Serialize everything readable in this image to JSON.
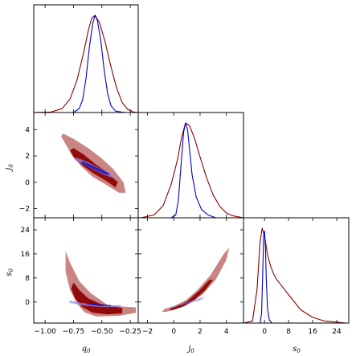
{
  "chart_data": {
    "type": "corner",
    "parameters": [
      "q0",
      "j0",
      "s0"
    ],
    "axis_labels": {
      "q0": {
        "base": "q",
        "sub": "0"
      },
      "j0": {
        "base": "j",
        "sub": "0"
      },
      "s0": {
        "base": "s",
        "sub": "0"
      }
    },
    "ranges": {
      "q0": [
        -1.1,
        -0.18
      ],
      "j0": [
        -2.7,
        5.3
      ],
      "s0": [
        -7,
        28
      ]
    },
    "ticks": {
      "q0": {
        "values": [
          -1.0,
          -0.75,
          -0.5,
          -0.25
        ],
        "labels": [
          "−1.00",
          "−0.75",
          "−0.50",
          "−0.25"
        ]
      },
      "j0": {
        "values": [
          -2,
          0,
          2,
          4
        ],
        "labels": [
          "−2",
          "0",
          "2",
          "4"
        ]
      },
      "s0": {
        "values": [
          0,
          8,
          16,
          24
        ],
        "labels": [
          "0",
          "8",
          "16",
          "24"
        ]
      }
    },
    "series": [
      {
        "color": "#8b0000",
        "fill_inner": "#8b0000",
        "fill_outer": "#c77a7a",
        "marginal_q0": {
          "x": [
            -1.1,
            -0.95,
            -0.85,
            -0.78,
            -0.72,
            -0.66,
            -0.62,
            -0.59,
            -0.56,
            -0.52,
            -0.47,
            -0.42,
            -0.37,
            -0.32,
            -0.27,
            -0.22,
            -0.18
          ],
          "y": [
            0.0,
            0.005,
            0.04,
            0.14,
            0.33,
            0.62,
            0.84,
            0.97,
            1.0,
            0.92,
            0.72,
            0.47,
            0.25,
            0.1,
            0.03,
            0.005,
            0.0
          ]
        },
        "marginal_j0": {
          "x": [
            -2.5,
            -1.5,
            -0.8,
            -0.2,
            0.3,
            0.6,
            0.9,
            1.2,
            1.6,
            2.0,
            2.5,
            3.0,
            3.5,
            4.0,
            4.5,
            5.3
          ],
          "y": [
            0.0,
            0.03,
            0.13,
            0.35,
            0.62,
            0.85,
            1.0,
            0.97,
            0.83,
            0.64,
            0.42,
            0.24,
            0.12,
            0.05,
            0.02,
            0.0
          ]
        },
        "marginal_s0": {
          "x": [
            -7,
            -4,
            -2.5,
            -1.5,
            -0.8,
            0,
            1,
            2,
            3,
            4,
            6,
            8,
            10,
            12,
            16,
            20,
            24,
            27
          ],
          "y": [
            0.0,
            0.02,
            0.35,
            0.85,
            1.0,
            0.92,
            0.72,
            0.6,
            0.52,
            0.46,
            0.38,
            0.3,
            0.22,
            0.14,
            0.06,
            0.02,
            0.01,
            0.0
          ]
        },
        "contour_j0_q0": {
          "outer": [
            [
              -0.84,
              3.7
            ],
            [
              -0.75,
              3.3
            ],
            [
              -0.62,
              2.6
            ],
            [
              -0.5,
              1.8
            ],
            [
              -0.4,
              1.0
            ],
            [
              -0.31,
              0.0
            ],
            [
              -0.29,
              -0.8
            ],
            [
              -0.35,
              -0.8
            ],
            [
              -0.48,
              -0.1
            ],
            [
              -0.58,
              0.4
            ],
            [
              -0.68,
              1.2
            ],
            [
              -0.76,
              2.0
            ],
            [
              -0.82,
              2.9
            ],
            [
              -0.86,
              3.5
            ]
          ],
          "inner": [
            [
              -0.75,
              2.6
            ],
            [
              -0.66,
              2.1
            ],
            [
              -0.56,
              1.4
            ],
            [
              -0.46,
              0.8
            ],
            [
              -0.36,
              0.0
            ],
            [
              -0.38,
              -0.4
            ],
            [
              -0.46,
              0.1
            ],
            [
              -0.56,
              0.6
            ],
            [
              -0.66,
              1.2
            ],
            [
              -0.74,
              1.8
            ],
            [
              -0.78,
              2.4
            ]
          ]
        },
        "contour_s0_q0": {
          "outer": [
            [
              -0.82,
              17
            ],
            [
              -0.78,
              13
            ],
            [
              -0.7,
              7
            ],
            [
              -0.6,
              3
            ],
            [
              -0.45,
              -1
            ],
            [
              -0.3,
              -1.6
            ],
            [
              -0.2,
              -1.8
            ],
            [
              -0.2,
              -3.6
            ],
            [
              -0.35,
              -4.6
            ],
            [
              -0.55,
              -4.8
            ],
            [
              -0.65,
              -3.5
            ],
            [
              -0.72,
              -0.5
            ],
            [
              -0.78,
              4
            ],
            [
              -0.82,
              10
            ]
          ],
          "inner": [
            [
              -0.75,
              6.5
            ],
            [
              -0.7,
              4
            ],
            [
              -0.62,
              1.2
            ],
            [
              -0.52,
              -0.5
            ],
            [
              -0.4,
              -1.5
            ],
            [
              -0.32,
              -2
            ],
            [
              -0.32,
              -3.8
            ],
            [
              -0.45,
              -4.1
            ],
            [
              -0.58,
              -3.6
            ],
            [
              -0.68,
              -1.5
            ],
            [
              -0.74,
              1.5
            ],
            [
              -0.77,
              4.5
            ]
          ]
        },
        "contour_s0_j0": {
          "outer": [
            [
              -0.5,
              -3.2
            ],
            [
              0.3,
              -2.2
            ],
            [
              1.2,
              -0.5
            ],
            [
              2.2,
              2.5
            ],
            [
              3.2,
              7.5
            ],
            [
              4.0,
              14
            ],
            [
              4.2,
              18
            ],
            [
              3.8,
              16
            ],
            [
              2.8,
              9
            ],
            [
              1.8,
              4
            ],
            [
              0.9,
              0.5
            ],
            [
              0.0,
              -1.4
            ],
            [
              -0.7,
              -2.3
            ],
            [
              -0.9,
              -3.3
            ]
          ],
          "inner": [
            [
              0.0,
              -2.6
            ],
            [
              0.8,
              -1.4
            ],
            [
              1.6,
              0.8
            ],
            [
              2.4,
              4.0
            ],
            [
              3.0,
              7.5
            ],
            [
              2.7,
              7.3
            ],
            [
              1.9,
              3.6
            ],
            [
              1.1,
              0.5
            ],
            [
              0.4,
              -1.2
            ],
            [
              -0.3,
              -2.2
            ],
            [
              -0.2,
              -2.8
            ]
          ]
        }
      },
      {
        "color": "#0000cc",
        "fill_inner": "#0000cc",
        "fill_outer": "#8f8fef",
        "marginal_q0": {
          "x": [
            -1.1,
            -0.75,
            -0.7,
            -0.67,
            -0.64,
            -0.61,
            -0.58,
            -0.56,
            -0.54,
            -0.51,
            -0.48,
            -0.45,
            -0.42,
            -0.38,
            -0.3,
            -0.18
          ],
          "y": [
            0.0,
            0.0,
            0.04,
            0.13,
            0.35,
            0.67,
            0.92,
            1.0,
            0.95,
            0.74,
            0.44,
            0.2,
            0.07,
            0.015,
            0.0,
            0.0
          ]
        },
        "marginal_j0": {
          "x": [
            -2.5,
            -0.2,
            0.15,
            0.35,
            0.55,
            0.75,
            0.9,
            1.05,
            1.2,
            1.4,
            1.7,
            2.1,
            2.6,
            3.2,
            5.3
          ],
          "y": [
            0.0,
            0.0,
            0.03,
            0.18,
            0.55,
            0.9,
            1.0,
            0.93,
            0.72,
            0.45,
            0.22,
            0.09,
            0.03,
            0.0,
            0.0
          ]
        },
        "marginal_s0": {
          "x": [
            -7,
            -1.5,
            -1.0,
            -0.6,
            -0.3,
            0.0,
            0.3,
            0.6,
            1.0,
            1.6,
            2.5,
            27
          ],
          "y": [
            0.0,
            0.0,
            0.1,
            0.55,
            0.92,
            0.97,
            0.8,
            0.45,
            0.15,
            0.03,
            0.0,
            0.0
          ]
        },
        "contour_j0_q0": {
          "outer": [
            [
              -0.73,
              1.9
            ],
            [
              -0.64,
              1.6
            ],
            [
              -0.55,
              1.2
            ],
            [
              -0.45,
              0.8
            ],
            [
              -0.4,
              0.6
            ],
            [
              -0.39,
              0.3
            ],
            [
              -0.46,
              0.5
            ],
            [
              -0.56,
              0.9
            ],
            [
              -0.65,
              1.3
            ],
            [
              -0.74,
              1.7
            ]
          ],
          "inner": [
            [
              -0.67,
              1.6
            ],
            [
              -0.58,
              1.25
            ],
            [
              -0.5,
              0.95
            ],
            [
              -0.43,
              0.65
            ],
            [
              -0.45,
              0.55
            ],
            [
              -0.52,
              0.8
            ],
            [
              -0.6,
              1.1
            ],
            [
              -0.68,
              1.45
            ]
          ]
        },
        "contour_s0_q0": {
          "outer": [
            [
              -0.78,
              0.5
            ],
            [
              -0.68,
              -0.3
            ],
            [
              -0.55,
              -0.9
            ],
            [
              -0.42,
              -1.1
            ],
            [
              -0.33,
              -1.0
            ],
            [
              -0.34,
              -1.6
            ],
            [
              -0.45,
              -1.7
            ],
            [
              -0.58,
              -1.5
            ],
            [
              -0.7,
              -1.0
            ],
            [
              -0.79,
              -0.2
            ]
          ],
          "inner": [
            [
              -0.63,
              -0.4
            ],
            [
              -0.52,
              -0.8
            ],
            [
              -0.42,
              -1.0
            ],
            [
              -0.42,
              -1.3
            ],
            [
              -0.53,
              -1.25
            ],
            [
              -0.63,
              -0.8
            ]
          ]
        },
        "contour_s0_j0": {
          "outer": [
            [
              -0.2,
              -1.6
            ],
            [
              0.5,
              -1.0
            ],
            [
              1.2,
              -0.4
            ],
            [
              2.0,
              0.6
            ],
            [
              2.4,
              1.6
            ],
            [
              2.0,
              1.3
            ],
            [
              1.3,
              0.3
            ],
            [
              0.6,
              -0.7
            ],
            [
              0.0,
              -1.8
            ],
            [
              -0.3,
              -1.9
            ]
          ],
          "inner": [
            [
              0.3,
              -1.2
            ],
            [
              0.8,
              -0.7
            ],
            [
              1.3,
              -0.1
            ],
            [
              1.1,
              -0.2
            ],
            [
              0.6,
              -0.9
            ],
            [
              0.2,
              -1.4
            ]
          ]
        }
      }
    ]
  }
}
